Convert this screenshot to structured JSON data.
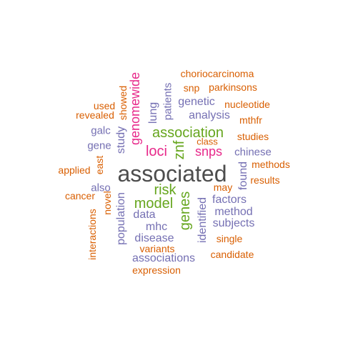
{
  "colors": {
    "gray": "#4d4d4d",
    "green": "#66a61e",
    "magenta": "#e7298a",
    "purple": "#7570b3",
    "orange": "#d95f02"
  },
  "words": [
    {
      "text": "associated",
      "color": "#4d4d4d"
    },
    {
      "text": "association",
      "color": "#66a61e"
    },
    {
      "text": "risk",
      "color": "#66a61e"
    },
    {
      "text": "model",
      "color": "#66a61e"
    },
    {
      "text": "genes",
      "color": "#66a61e"
    },
    {
      "text": "znf",
      "color": "#66a61e"
    },
    {
      "text": "genomewide",
      "color": "#e7298a"
    },
    {
      "text": "loci",
      "color": "#e7298a"
    },
    {
      "text": "snps",
      "color": "#e7298a"
    },
    {
      "text": "analysis",
      "color": "#7570b3"
    },
    {
      "text": "genetic",
      "color": "#7570b3"
    },
    {
      "text": "chinese",
      "color": "#7570b3"
    },
    {
      "text": "found",
      "color": "#7570b3"
    },
    {
      "text": "factors",
      "color": "#7570b3"
    },
    {
      "text": "method",
      "color": "#7570b3"
    },
    {
      "text": "subjects",
      "color": "#7570b3"
    },
    {
      "text": "identified",
      "color": "#7570b3"
    },
    {
      "text": "data",
      "color": "#7570b3"
    },
    {
      "text": "mhc",
      "color": "#7570b3"
    },
    {
      "text": "disease",
      "color": "#7570b3"
    },
    {
      "text": "associations",
      "color": "#7570b3"
    },
    {
      "text": "population",
      "color": "#7570b3"
    },
    {
      "text": "study",
      "color": "#7570b3"
    },
    {
      "text": "lung",
      "color": "#7570b3"
    },
    {
      "text": "patients",
      "color": "#7570b3"
    },
    {
      "text": "galc",
      "color": "#7570b3"
    },
    {
      "text": "gene",
      "color": "#7570b3"
    },
    {
      "text": "also",
      "color": "#7570b3"
    },
    {
      "text": "east",
      "color": "#d95f02"
    },
    {
      "text": "choriocarcinoma",
      "color": "#d95f02"
    },
    {
      "text": "snp",
      "color": "#d95f02"
    },
    {
      "text": "parkinsons",
      "color": "#d95f02"
    },
    {
      "text": "nucleotide",
      "color": "#d95f02"
    },
    {
      "text": "mthfr",
      "color": "#d95f02"
    },
    {
      "text": "studies",
      "color": "#d95f02"
    },
    {
      "text": "class",
      "color": "#d95f02"
    },
    {
      "text": "methods",
      "color": "#d95f02"
    },
    {
      "text": "results",
      "color": "#d95f02"
    },
    {
      "text": "may",
      "color": "#d95f02"
    },
    {
      "text": "single",
      "color": "#d95f02"
    },
    {
      "text": "candidate",
      "color": "#d95f02"
    },
    {
      "text": "variants",
      "color": "#d95f02"
    },
    {
      "text": "expression",
      "color": "#d95f02"
    },
    {
      "text": "interactions",
      "color": "#d95f02"
    },
    {
      "text": "novel",
      "color": "#d95f02"
    },
    {
      "text": "cancer",
      "color": "#d95f02"
    },
    {
      "text": "applied",
      "color": "#d95f02"
    },
    {
      "text": "revealed",
      "color": "#d95f02"
    },
    {
      "text": "used",
      "color": "#d95f02"
    },
    {
      "text": "showed",
      "color": "#d95f02"
    }
  ]
}
